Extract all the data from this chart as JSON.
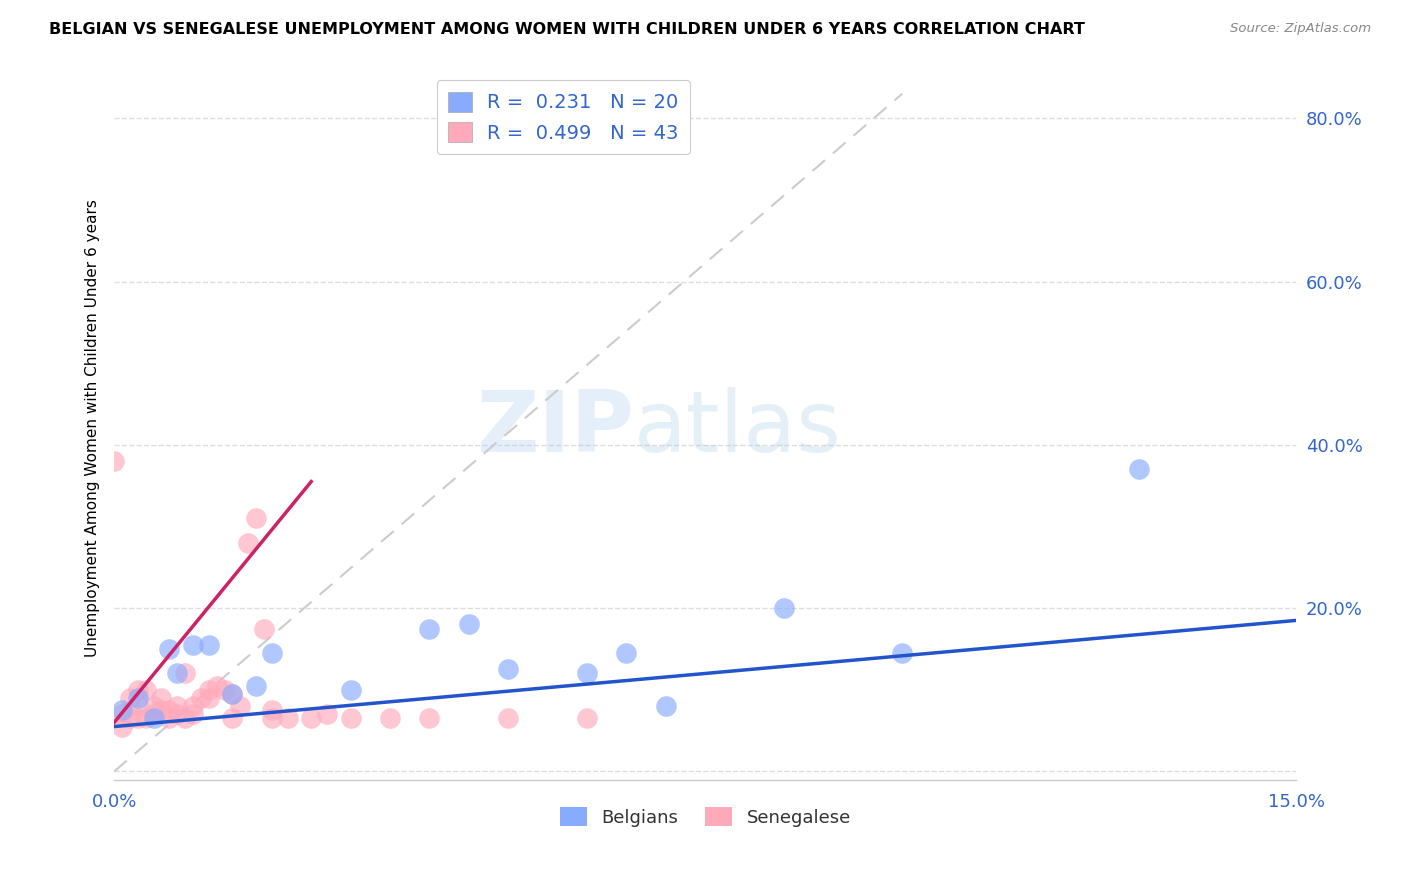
{
  "title": "BELGIAN VS SENEGALESE UNEMPLOYMENT AMONG WOMEN WITH CHILDREN UNDER 6 YEARS CORRELATION CHART",
  "source": "Source: ZipAtlas.com",
  "ylabel": "Unemployment Among Women with Children Under 6 years",
  "xlim": [
    0.0,
    0.15
  ],
  "ylim": [
    -0.01,
    0.85
  ],
  "ytick_vals": [
    0.0,
    0.2,
    0.4,
    0.6,
    0.8
  ],
  "ytick_labels": [
    "",
    "20.0%",
    "40.0%",
    "60.0%",
    "80.0%"
  ],
  "xtick_vals": [
    0.0,
    0.03,
    0.06,
    0.09,
    0.12,
    0.15
  ],
  "xtick_labels": [
    "0.0%",
    "",
    "",
    "",
    "",
    "15.0%"
  ],
  "belgian_color": "#88aaff",
  "senegalese_color": "#ffaabb",
  "trend_belgian_color": "#2255cc",
  "trend_senegalese_color": "#cc2266",
  "diagonal_color": "#cccccc",
  "legend_R_belgian": "0.231",
  "legend_N_belgian": "20",
  "legend_R_senegalese": "0.499",
  "legend_N_senegalese": "43",
  "watermark_zip": "ZIP",
  "watermark_atlas": "atlas",
  "belgian_x": [
    0.001,
    0.003,
    0.005,
    0.007,
    0.008,
    0.01,
    0.012,
    0.015,
    0.018,
    0.02,
    0.03,
    0.04,
    0.045,
    0.05,
    0.06,
    0.065,
    0.07,
    0.085,
    0.1,
    0.13
  ],
  "belgian_y": [
    0.075,
    0.09,
    0.065,
    0.15,
    0.12,
    0.155,
    0.155,
    0.095,
    0.105,
    0.145,
    0.1,
    0.175,
    0.18,
    0.125,
    0.12,
    0.145,
    0.08,
    0.2,
    0.145,
    0.37
  ],
  "senegalese_x": [
    0.0,
    0.001,
    0.001,
    0.002,
    0.002,
    0.003,
    0.003,
    0.003,
    0.004,
    0.004,
    0.005,
    0.005,
    0.006,
    0.006,
    0.007,
    0.007,
    0.008,
    0.008,
    0.009,
    0.009,
    0.01,
    0.01,
    0.011,
    0.012,
    0.012,
    0.013,
    0.014,
    0.015,
    0.015,
    0.016,
    0.017,
    0.018,
    0.019,
    0.02,
    0.02,
    0.022,
    0.025,
    0.027,
    0.03,
    0.035,
    0.04,
    0.05,
    0.06
  ],
  "senegalese_y": [
    0.38,
    0.055,
    0.07,
    0.065,
    0.09,
    0.1,
    0.065,
    0.08,
    0.065,
    0.1,
    0.08,
    0.07,
    0.075,
    0.09,
    0.065,
    0.075,
    0.07,
    0.08,
    0.065,
    0.12,
    0.07,
    0.08,
    0.09,
    0.1,
    0.09,
    0.105,
    0.1,
    0.095,
    0.065,
    0.08,
    0.28,
    0.31,
    0.175,
    0.065,
    0.075,
    0.065,
    0.065,
    0.07,
    0.065,
    0.065,
    0.065,
    0.065,
    0.065
  ],
  "trend_belgian_x0": 0.0,
  "trend_belgian_y0": 0.055,
  "trend_belgian_x1": 0.15,
  "trend_belgian_y1": 0.185,
  "trend_sene_x0": 0.0,
  "trend_sene_y0": 0.06,
  "trend_sene_x1": 0.025,
  "trend_sene_y1": 0.355
}
